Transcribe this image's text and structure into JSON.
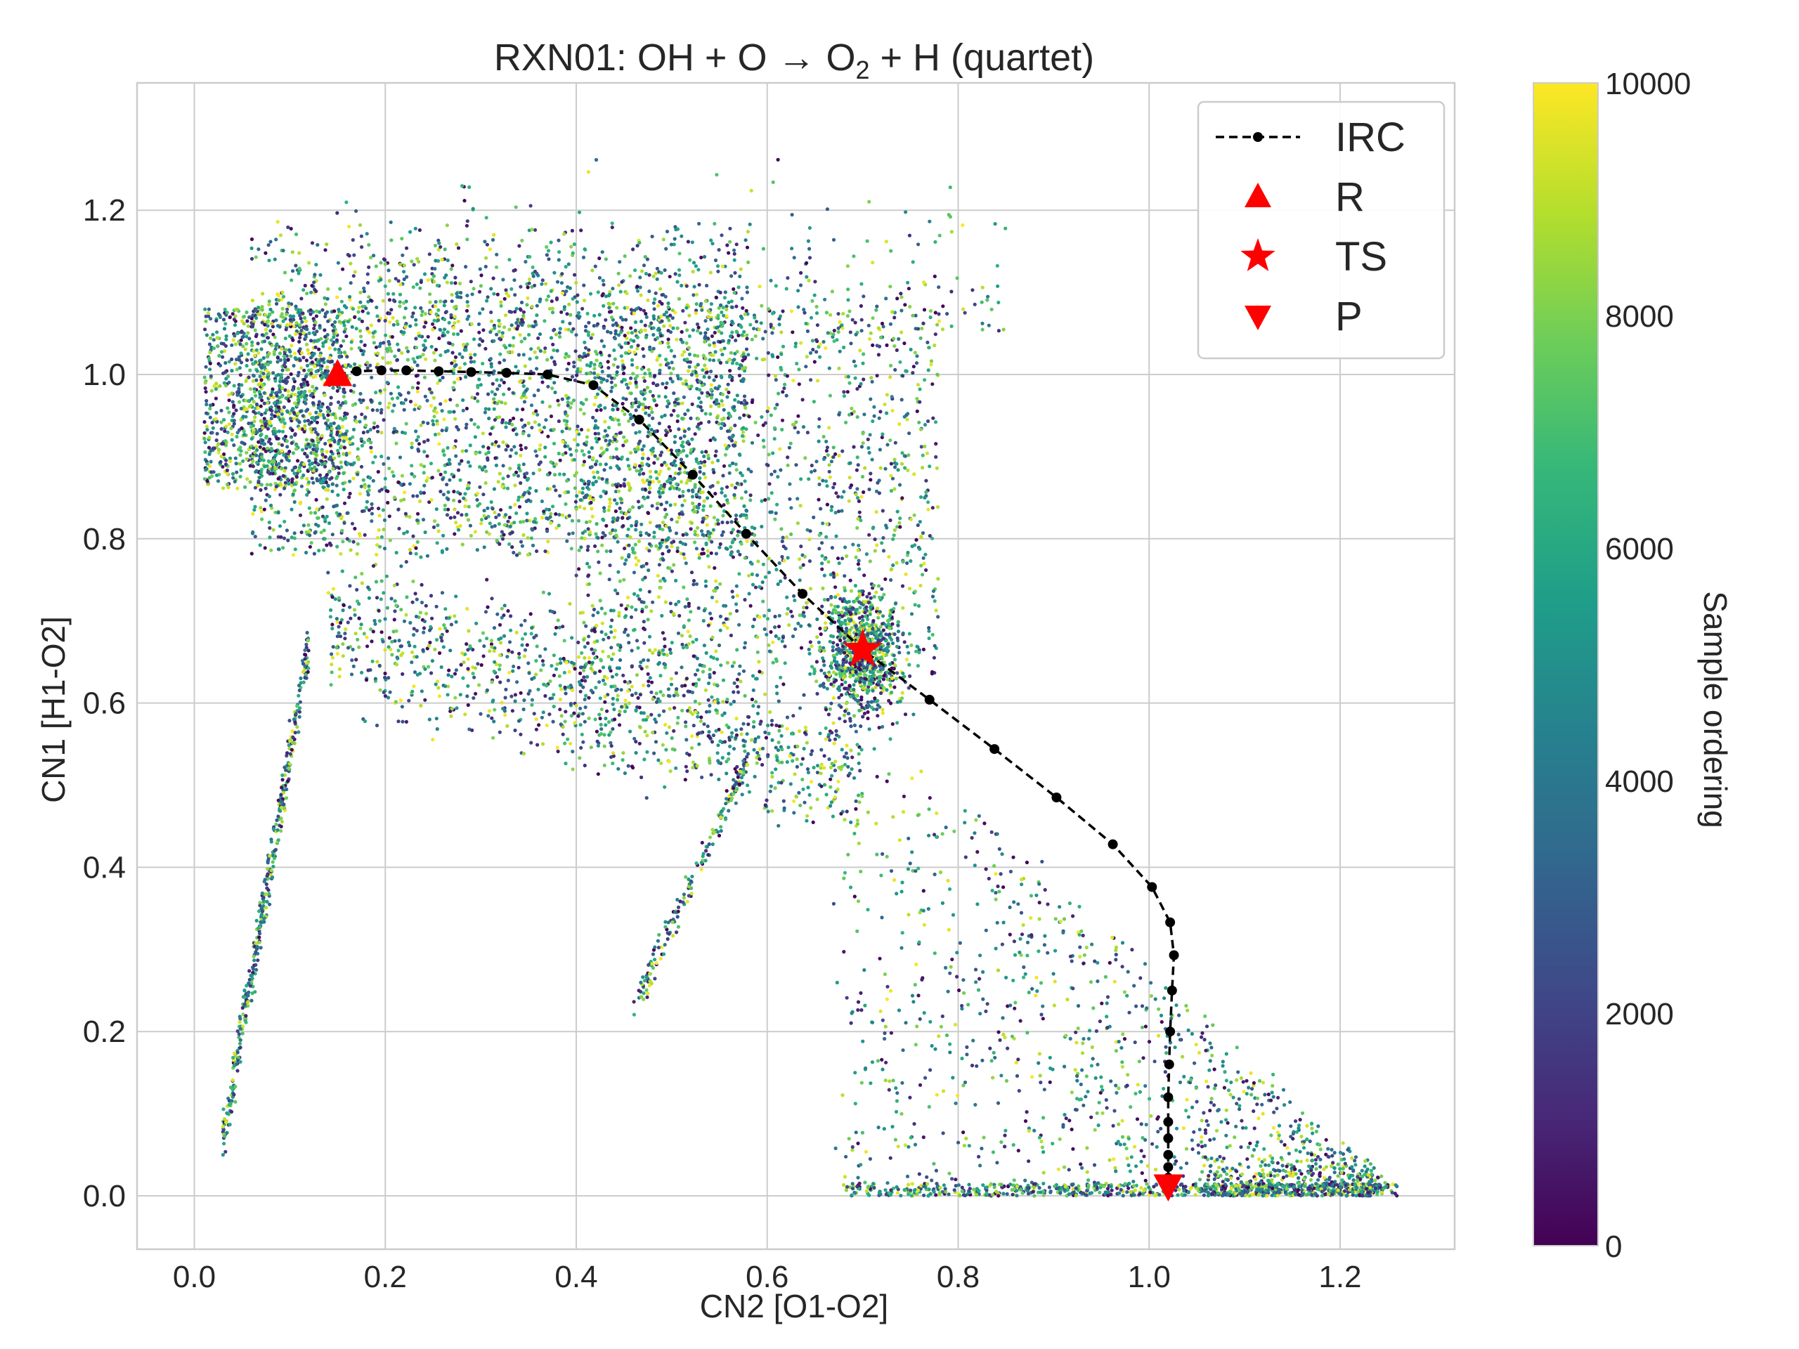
{
  "chart_data": {
    "type": "scatter",
    "title": "RXN01: OH + O → O₂ + H (quartet)",
    "title_parts": {
      "before": "RXN01: OH + O  →  O",
      "subscript": "2",
      "after": " + H (quartet)"
    },
    "xlabel": "CN2 [O1-O2]",
    "ylabel": "CN1 [H1-O2]",
    "xlim": [
      -0.06,
      1.32
    ],
    "ylim": [
      -0.065,
      1.355
    ],
    "xticks": [
      0.0,
      0.2,
      0.4,
      0.6,
      0.8,
      1.0,
      1.2
    ],
    "xtick_labels": [
      "0.0",
      "0.2",
      "0.4",
      "0.6",
      "0.8",
      "1.0",
      "1.2"
    ],
    "yticks": [
      0.0,
      0.2,
      0.4,
      0.6,
      0.8,
      1.0,
      1.2
    ],
    "ytick_labels": [
      "0.0",
      "0.2",
      "0.4",
      "0.6",
      "0.8",
      "1.0",
      "1.2"
    ],
    "grid": true,
    "legend": {
      "placement": "top-right",
      "entries": [
        "IRC",
        "R",
        "TS",
        "P"
      ]
    },
    "colorbar": {
      "label": "Sample ordering",
      "colormap": "viridis",
      "range": [
        0,
        10000
      ],
      "ticks": [
        0,
        2000,
        4000,
        6000,
        8000,
        10000
      ],
      "tick_labels": [
        "0",
        "2000",
        "4000",
        "6000",
        "8000",
        "10000"
      ]
    },
    "series": [
      {
        "name": "IRC",
        "kind": "line",
        "style": "dashed black with dot markers",
        "color": "#000000",
        "x": [
          0.15,
          0.17,
          0.196,
          0.222,
          0.256,
          0.29,
          0.327,
          0.37,
          0.418,
          0.466,
          0.522,
          0.578,
          0.637,
          0.7,
          0.77,
          0.838,
          0.903,
          0.962,
          1.003,
          1.022,
          1.026,
          1.024,
          1.022,
          1.021,
          1.02,
          1.02,
          1.02,
          1.02,
          1.02,
          1.02,
          1.02
        ],
        "y": [
          1.0,
          1.004,
          1.005,
          1.005,
          1.004,
          1.003,
          1.002,
          1.0,
          0.987,
          0.945,
          0.878,
          0.806,
          0.733,
          0.665,
          0.604,
          0.544,
          0.485,
          0.428,
          0.376,
          0.333,
          0.293,
          0.25,
          0.2,
          0.16,
          0.12,
          0.09,
          0.07,
          0.05,
          0.035,
          0.022,
          0.012
        ]
      },
      {
        "name": "R",
        "kind": "marker",
        "marker": "triangle-up",
        "color": "#ff0000",
        "x": [
          0.15
        ],
        "y": [
          1.0
        ]
      },
      {
        "name": "TS",
        "kind": "marker",
        "marker": "star",
        "color": "#ff0000",
        "x": [
          0.7
        ],
        "y": [
          0.665
        ]
      },
      {
        "name": "P",
        "kind": "marker",
        "marker": "triangle-down",
        "color": "#ff0000",
        "x": [
          1.02
        ],
        "y": [
          0.012
        ]
      }
    ],
    "samples": {
      "count": 10000,
      "color_by": "sample ordering"
    }
  }
}
